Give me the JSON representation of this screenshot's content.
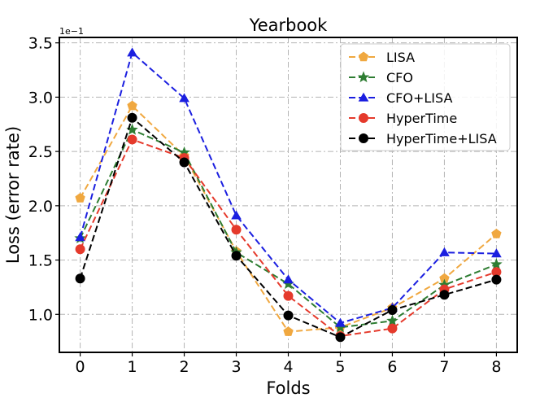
{
  "chart_data": {
    "type": "line",
    "title": "Yearbook",
    "xlabel": "Folds",
    "ylabel": "Loss (error rate)",
    "y_offset_label": "1e−1",
    "x": [
      0,
      1,
      2,
      3,
      4,
      5,
      6,
      7,
      8
    ],
    "xlim": [
      -0.4,
      8.4
    ],
    "ylim": [
      0.065,
      0.355
    ],
    "y_ticks": [
      0.1,
      0.15,
      0.2,
      0.25,
      0.3,
      0.35
    ],
    "y_tick_labels": [
      "1.0",
      "1.5",
      "2.0",
      "2.5",
      "3.0",
      "3.5"
    ],
    "x_tick_labels": [
      "0",
      "1",
      "2",
      "3",
      "4",
      "5",
      "6",
      "7",
      "8"
    ],
    "grid": true,
    "legend_position": "top-right",
    "series": [
      {
        "name": "LISA",
        "color": "#f0a840",
        "marker": "pentagon",
        "values": [
          0.207,
          0.292,
          0.246,
          0.158,
          0.084,
          0.088,
          0.106,
          0.133,
          0.174
        ]
      },
      {
        "name": "CFO",
        "color": "#2e7d32",
        "marker": "star",
        "values": [
          0.17,
          0.27,
          0.249,
          0.157,
          0.128,
          0.088,
          0.094,
          0.127,
          0.146
        ]
      },
      {
        "name": "CFO+LISA",
        "color": "#1b1fe0",
        "marker": "triangle",
        "values": [
          0.171,
          0.341,
          0.299,
          0.191,
          0.132,
          0.092,
          0.106,
          0.157,
          0.156
        ]
      },
      {
        "name": "HyperTime",
        "color": "#e53a2c",
        "marker": "circle",
        "values": [
          0.16,
          0.261,
          0.244,
          0.178,
          0.117,
          0.08,
          0.087,
          0.123,
          0.139
        ]
      },
      {
        "name": "HyperTime+LISA",
        "color": "#000000",
        "marker": "circle",
        "values": [
          0.133,
          0.281,
          0.24,
          0.154,
          0.099,
          0.079,
          0.104,
          0.118,
          0.132
        ]
      }
    ]
  }
}
